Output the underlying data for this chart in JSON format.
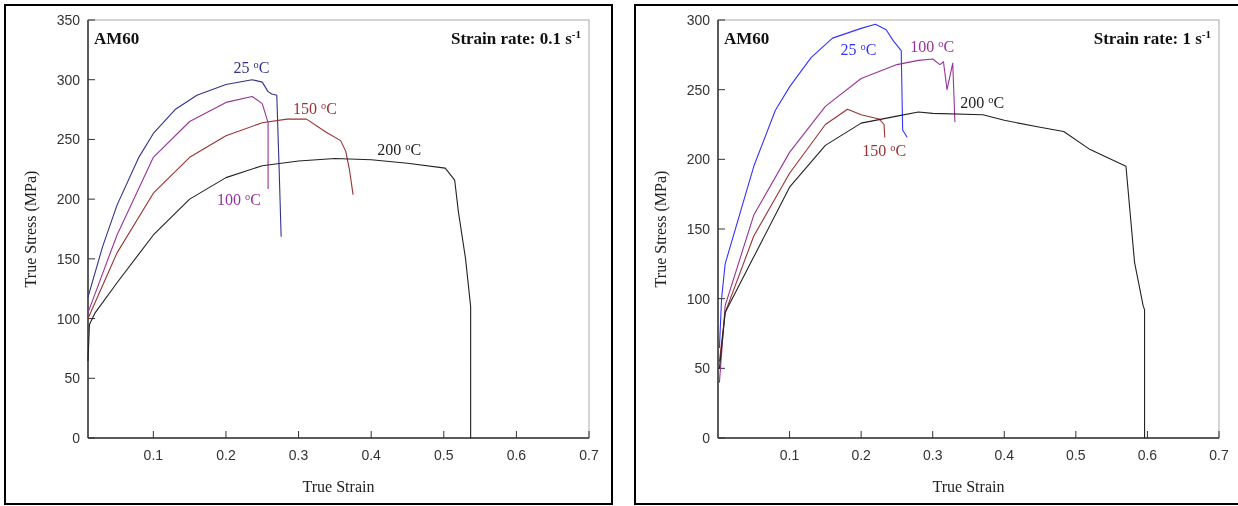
{
  "chart_data": [
    {
      "type": "line",
      "xlabel": "True Strain",
      "ylabel": "True Stress (MPa)",
      "xlim": [
        0.01,
        0.7
      ],
      "ylim": [
        0,
        350
      ],
      "xticks": [
        0.1,
        0.2,
        0.3,
        0.4,
        0.5,
        0.6,
        0.7
      ],
      "yticks": [
        0,
        50,
        100,
        150,
        200,
        250,
        300,
        350
      ],
      "grid": false,
      "marker": "none",
      "line_style": "solid",
      "annotations": [
        "AM60",
        "Strain rate: 0.1 s$^{-1}$"
      ],
      "series": [
        {
          "name": "25 $^{o}$C",
          "color": "#333388",
          "x": [
            0.01,
            0.03,
            0.05,
            0.08,
            0.1,
            0.13,
            0.16,
            0.2,
            0.236,
            0.25,
            0.258,
            0.263,
            0.27,
            0.273,
            0.276
          ],
          "values": [
            118,
            160,
            195,
            235,
            255,
            275,
            287,
            296,
            300,
            298,
            290,
            288,
            287,
            230,
            169
          ]
        },
        {
          "name": "100 $^{o}$C",
          "color": "#993399",
          "x": [
            0.01,
            0.05,
            0.1,
            0.15,
            0.2,
            0.236,
            0.25,
            0.258,
            0.258
          ],
          "values": [
            105,
            170,
            235,
            265,
            281,
            286,
            280,
            264,
            209
          ]
        },
        {
          "name": "150 $^{o}$C",
          "color": "#993333",
          "x": [
            0.01,
            0.05,
            0.1,
            0.15,
            0.2,
            0.25,
            0.284,
            0.311,
            0.338,
            0.358,
            0.365,
            0.37,
            0.375
          ],
          "values": [
            100,
            155,
            205,
            235,
            253,
            264,
            267,
            267,
            256,
            249,
            240,
            225,
            204
          ]
        },
        {
          "name": "200 $^{o}$C",
          "color": "#222222",
          "x": [
            0.01,
            0.012,
            0.02,
            0.05,
            0.1,
            0.15,
            0.2,
            0.25,
            0.3,
            0.35,
            0.4,
            0.45,
            0.502,
            0.515,
            0.52,
            0.53,
            0.537,
            0.537
          ],
          "values": [
            65,
            95,
            105,
            130,
            170,
            200,
            218,
            228,
            232,
            234,
            233,
            230,
            226,
            216,
            190,
            150,
            110,
            0
          ]
        }
      ]
    },
    {
      "type": "line",
      "xlabel": "True Strain",
      "ylabel": "True Stress (MPa)",
      "xlim": [
        0,
        0.7
      ],
      "ylim": [
        0,
        300
      ],
      "xticks": [
        0.1,
        0.2,
        0.3,
        0.4,
        0.5,
        0.6,
        0.7
      ],
      "yticks": [
        0,
        50,
        100,
        150,
        200,
        250,
        300
      ],
      "grid": false,
      "marker": "none",
      "line_style": "solid",
      "annotations": [
        "AM60",
        "Strain rate: 1 s$^{-1}$"
      ],
      "series": [
        {
          "name": "25 $^{o}$C",
          "color": "#3333ff",
          "x": [
            0.002,
            0.005,
            0.01,
            0.03,
            0.05,
            0.08,
            0.1,
            0.13,
            0.16,
            0.2,
            0.22,
            0.235,
            0.245,
            0.256,
            0.258,
            0.264
          ],
          "values": [
            65,
            100,
            125,
            160,
            195,
            235,
            252,
            273,
            287,
            294,
            297,
            293,
            285,
            278,
            221,
            216
          ]
        },
        {
          "name": "100 $^{o}$C",
          "color": "#993399",
          "x": [
            0.002,
            0.01,
            0.05,
            0.1,
            0.15,
            0.2,
            0.25,
            0.28,
            0.3,
            0.31,
            0.315,
            0.32,
            0.328,
            0.331
          ],
          "values": [
            40,
            95,
            160,
            205,
            238,
            258,
            268,
            271,
            272,
            268,
            270,
            250,
            269,
            227
          ]
        },
        {
          "name": "150 $^{o}$C",
          "color": "#993333",
          "x": [
            0.002,
            0.01,
            0.05,
            0.1,
            0.15,
            0.181,
            0.2,
            0.225,
            0.232,
            0.233
          ],
          "values": [
            55,
            90,
            145,
            190,
            225,
            236,
            232,
            229,
            225,
            216
          ]
        },
        {
          "name": "200 $^{o}$C",
          "color": "#222222",
          "x": [
            0.002,
            0.01,
            0.05,
            0.1,
            0.15,
            0.2,
            0.25,
            0.28,
            0.3,
            0.37,
            0.4,
            0.45,
            0.483,
            0.52,
            0.57,
            0.5775,
            0.582,
            0.594,
            0.596,
            0.596
          ],
          "values": [
            50,
            90,
            130,
            180,
            210,
            226,
            231,
            234,
            233,
            232,
            228,
            223,
            220,
            207,
            195,
            152,
            126,
            95,
            92,
            0
          ]
        }
      ]
    }
  ]
}
